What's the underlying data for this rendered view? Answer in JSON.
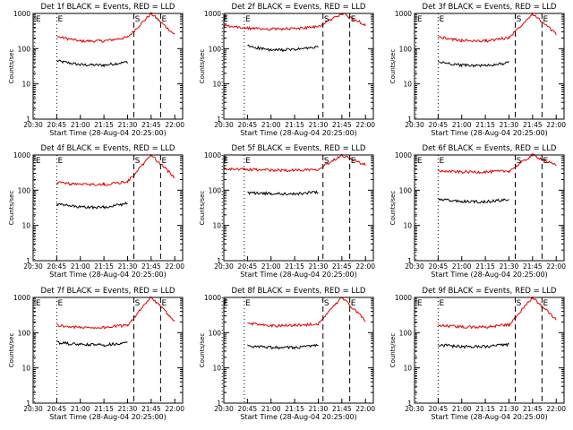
{
  "chart_data": [
    {
      "type": "line",
      "title": "Det 1f BLACK = Events, RED = LLD",
      "xlabel": "Start Time (28-Aug-04 20:25:00)",
      "ylabel": "Counts/sec",
      "yscale": "log",
      "ylim": [
        1,
        1000
      ],
      "xlim": [
        "20:30",
        "22:05"
      ],
      "xticks": [
        "20:30",
        "20:45",
        "21:00",
        "21:15",
        "21:30",
        "21:45",
        "22:00"
      ],
      "yticks": [
        "1",
        "10",
        "100",
        "1000"
      ],
      "x": [
        "20:30",
        "20:45",
        "21:00",
        "21:15",
        "21:30",
        "21:45",
        "22:00"
      ],
      "markers": [
        {
          "label": "E",
          "time": "20:31",
          "style": "dotted"
        },
        {
          "label": "E",
          "time": "20:45",
          "style": "dotted"
        },
        {
          "label": "S",
          "time": "21:34",
          "style": "dashed"
        },
        {
          "label": "E",
          "time": "21:51",
          "style": "dashed"
        }
      ],
      "series": [
        {
          "name": "Events",
          "color": "#000000",
          "values": [
            null,
            45,
            35,
            34,
            42,
            null,
            null
          ]
        },
        {
          "name": "LLD",
          "color": "#e00000",
          "values": [
            null,
            220,
            165,
            165,
            210,
            1000,
            250
          ]
        }
      ]
    },
    {
      "type": "line",
      "title": "Det 2f BLACK = Events, RED = LLD",
      "xlabel": "Start Time (28-Aug-04 20:25:00)",
      "ylabel": "Counts/sec",
      "yscale": "log",
      "ylim": [
        1,
        1000
      ],
      "xlim": [
        "20:30",
        "22:05"
      ],
      "xticks": [
        "20:30",
        "20:45",
        "21:00",
        "21:15",
        "21:30",
        "21:45",
        "22:00"
      ],
      "yticks": [
        "1",
        "10",
        "100",
        "1000"
      ],
      "x": [
        "20:30",
        "20:45",
        "21:00",
        "21:15",
        "21:30",
        "21:45",
        "22:00"
      ],
      "markers": [
        {
          "label": "E",
          "time": "20:29",
          "style": "dotted"
        },
        {
          "label": "E",
          "time": "20:43",
          "style": "dotted"
        },
        {
          "label": "S",
          "time": "21:33",
          "style": "dashed"
        },
        {
          "label": "E",
          "time": "21:50",
          "style": "dashed"
        }
      ],
      "series": [
        {
          "name": "Events",
          "color": "#000000",
          "values": [
            null,
            120,
            90,
            95,
            110,
            null,
            null
          ]
        },
        {
          "name": "LLD",
          "color": "#e00000",
          "values": [
            440,
            380,
            360,
            370,
            420,
            1000,
            480
          ]
        }
      ]
    },
    {
      "type": "line",
      "title": "Det 3f BLACK = Events, RED = LLD",
      "xlabel": "Start Time (28-Aug-04 20:25:00)",
      "ylabel": "Counts/sec",
      "yscale": "log",
      "ylim": [
        1,
        1000
      ],
      "xlim": [
        "20:30",
        "22:05"
      ],
      "xticks": [
        "20:30",
        "20:45",
        "21:00",
        "21:15",
        "21:30",
        "21:45",
        "22:00"
      ],
      "yticks": [
        "1",
        "10",
        "100",
        "1000"
      ],
      "x": [
        "20:30",
        "20:45",
        "21:00",
        "21:15",
        "21:30",
        "21:45",
        "22:00"
      ],
      "markers": [
        {
          "label": "E",
          "time": "20:31",
          "style": "dotted"
        },
        {
          "label": "E",
          "time": "20:45",
          "style": "dotted"
        },
        {
          "label": "S",
          "time": "21:34",
          "style": "dashed"
        },
        {
          "label": "E",
          "time": "21:51",
          "style": "dashed"
        }
      ],
      "series": [
        {
          "name": "Events",
          "color": "#000000",
          "values": [
            null,
            42,
            34,
            33,
            40,
            null,
            null
          ]
        },
        {
          "name": "LLD",
          "color": "#e00000",
          "values": [
            null,
            215,
            170,
            165,
            205,
            1000,
            260
          ]
        }
      ]
    },
    {
      "type": "line",
      "title": "Det 4f BLACK = Events, RED = LLD",
      "xlabel": "Start Time (28-Aug-04 20:25:00)",
      "ylabel": "Counts/sec",
      "yscale": "log",
      "ylim": [
        1,
        1000
      ],
      "xlim": [
        "20:30",
        "22:05"
      ],
      "xticks": [
        "20:30",
        "20:45",
        "21:00",
        "21:15",
        "21:30",
        "21:45",
        "22:00"
      ],
      "yticks": [
        "1",
        "10",
        "100",
        "1000"
      ],
      "x": [
        "20:30",
        "20:45",
        "21:00",
        "21:15",
        "21:30",
        "21:45",
        "22:00"
      ],
      "markers": [
        {
          "label": "E",
          "time": "20:31",
          "style": "dotted"
        },
        {
          "label": "E",
          "time": "20:45",
          "style": "dotted"
        },
        {
          "label": "S",
          "time": "21:34",
          "style": "dashed"
        },
        {
          "label": "E",
          "time": "21:51",
          "style": "dashed"
        }
      ],
      "series": [
        {
          "name": "Events",
          "color": "#000000",
          "values": [
            null,
            40,
            33,
            33,
            42,
            null,
            null
          ]
        },
        {
          "name": "LLD",
          "color": "#e00000",
          "values": [
            null,
            165,
            145,
            145,
            175,
            1000,
            230
          ]
        }
      ]
    },
    {
      "type": "line",
      "title": "Det 5f BLACK = Events, RED = LLD",
      "xlabel": "Start Time (28-Aug-04 20:25:00)",
      "ylabel": "Counts/sec",
      "yscale": "log",
      "ylim": [
        1,
        1000
      ],
      "xlim": [
        "20:30",
        "22:05"
      ],
      "xticks": [
        "20:30",
        "20:45",
        "21:00",
        "21:15",
        "21:30",
        "21:45",
        "22:00"
      ],
      "yticks": [
        "1",
        "10",
        "100",
        "1000"
      ],
      "x": [
        "20:30",
        "20:45",
        "21:00",
        "21:15",
        "21:30",
        "21:45",
        "22:00"
      ],
      "markers": [
        {
          "label": "E",
          "time": "20:29",
          "style": "dotted"
        },
        {
          "label": "E",
          "time": "20:43",
          "style": "dotted"
        },
        {
          "label": "S",
          "time": "21:33",
          "style": "dashed"
        },
        {
          "label": "E",
          "time": "21:50",
          "style": "dashed"
        }
      ],
      "series": [
        {
          "name": "Events",
          "color": "#000000",
          "values": [
            null,
            85,
            80,
            78,
            90,
            null,
            null
          ]
        },
        {
          "name": "LLD",
          "color": "#e00000",
          "values": [
            400,
            390,
            370,
            370,
            400,
            1000,
            520
          ]
        }
      ]
    },
    {
      "type": "line",
      "title": "Det 6f BLACK = Events, RED = LLD",
      "xlabel": "Start Time (28-Aug-04 20:25:00)",
      "ylabel": "Counts/sec",
      "yscale": "log",
      "ylim": [
        1,
        1000
      ],
      "xlim": [
        "20:30",
        "22:05"
      ],
      "xticks": [
        "20:30",
        "20:45",
        "21:00",
        "21:15",
        "21:30",
        "21:45",
        "22:00"
      ],
      "yticks": [
        "1",
        "10",
        "100",
        "1000"
      ],
      "x": [
        "20:30",
        "20:45",
        "21:00",
        "21:15",
        "21:30",
        "21:45",
        "22:00"
      ],
      "markers": [
        {
          "label": "E",
          "time": "20:31",
          "style": "dotted"
        },
        {
          "label": "E",
          "time": "20:45",
          "style": "dotted"
        },
        {
          "label": "S",
          "time": "21:34",
          "style": "dashed"
        },
        {
          "label": "E",
          "time": "21:51",
          "style": "dashed"
        }
      ],
      "series": [
        {
          "name": "Events",
          "color": "#000000",
          "values": [
            null,
            55,
            48,
            47,
            55,
            null,
            null
          ]
        },
        {
          "name": "LLD",
          "color": "#e00000",
          "values": [
            null,
            350,
            330,
            330,
            350,
            1000,
            500
          ]
        }
      ]
    },
    {
      "type": "line",
      "title": "Det 7f BLACK = Events, RED = LLD",
      "xlabel": "Start Time (28-Aug-04 20:25:00)",
      "ylabel": "Counts/sec",
      "yscale": "log",
      "ylim": [
        1,
        1000
      ],
      "xlim": [
        "20:30",
        "22:05"
      ],
      "xticks": [
        "20:30",
        "20:45",
        "21:00",
        "21:15",
        "21:30",
        "21:45",
        "22:00"
      ],
      "yticks": [
        "1",
        "10",
        "100",
        "1000"
      ],
      "x": [
        "20:30",
        "20:45",
        "21:00",
        "21:15",
        "21:30",
        "21:45",
        "22:00"
      ],
      "markers": [
        {
          "label": "E",
          "time": "20:31",
          "style": "dotted"
        },
        {
          "label": "E",
          "time": "20:45",
          "style": "dotted"
        },
        {
          "label": "S",
          "time": "21:34",
          "style": "dashed"
        },
        {
          "label": "E",
          "time": "21:51",
          "style": "dashed"
        }
      ],
      "series": [
        {
          "name": "Events",
          "color": "#000000",
          "values": [
            null,
            52,
            46,
            45,
            52,
            null,
            null
          ]
        },
        {
          "name": "LLD",
          "color": "#e00000",
          "values": [
            null,
            160,
            140,
            140,
            165,
            1000,
            220
          ]
        }
      ]
    },
    {
      "type": "line",
      "title": "Det 8f BLACK = Events, RED = LLD",
      "xlabel": "Start Time (28-Aug-04 20:25:00)",
      "ylabel": "Counts/sec",
      "yscale": "log",
      "ylim": [
        1,
        1000
      ],
      "xlim": [
        "20:30",
        "22:05"
      ],
      "xticks": [
        "20:30",
        "20:45",
        "21:00",
        "21:15",
        "21:30",
        "21:45",
        "22:00"
      ],
      "yticks": [
        "1",
        "10",
        "100",
        "1000"
      ],
      "x": [
        "20:30",
        "20:45",
        "21:00",
        "21:15",
        "21:30",
        "21:45",
        "22:00"
      ],
      "markers": [
        {
          "label": "E",
          "time": "20:29",
          "style": "dotted"
        },
        {
          "label": "E",
          "time": "20:43",
          "style": "dotted"
        },
        {
          "label": "S",
          "time": "21:33",
          "style": "dashed"
        },
        {
          "label": "E",
          "time": "21:50",
          "style": "dashed"
        }
      ],
      "series": [
        {
          "name": "Events",
          "color": "#000000",
          "values": [
            null,
            42,
            38,
            38,
            44,
            null,
            null
          ]
        },
        {
          "name": "LLD",
          "color": "#e00000",
          "values": [
            null,
            185,
            160,
            160,
            180,
            1000,
            220
          ]
        }
      ]
    },
    {
      "type": "line",
      "title": "Det 9f BLACK = Events, RED = LLD",
      "xlabel": "Start Time (28-Aug-04 20:25:00)",
      "ylabel": "Counts/sec",
      "yscale": "log",
      "ylim": [
        1,
        1000
      ],
      "xlim": [
        "20:30",
        "22:05"
      ],
      "xticks": [
        "20:30",
        "20:45",
        "21:00",
        "21:15",
        "21:30",
        "21:45",
        "22:00"
      ],
      "yticks": [
        "1",
        "10",
        "100",
        "1000"
      ],
      "x": [
        "20:30",
        "20:45",
        "21:00",
        "21:15",
        "21:30",
        "21:45",
        "22:00"
      ],
      "markers": [
        {
          "label": "E",
          "time": "20:31",
          "style": "dotted"
        },
        {
          "label": "E",
          "time": "20:45",
          "style": "dotted"
        },
        {
          "label": "S",
          "time": "21:34",
          "style": "dashed"
        },
        {
          "label": "E",
          "time": "21:51",
          "style": "dashed"
        }
      ],
      "series": [
        {
          "name": "Events",
          "color": "#000000",
          "values": [
            null,
            45,
            40,
            40,
            46,
            null,
            null
          ]
        },
        {
          "name": "LLD",
          "color": "#e00000",
          "values": [
            null,
            160,
            145,
            145,
            170,
            1000,
            240
          ]
        }
      ]
    }
  ]
}
